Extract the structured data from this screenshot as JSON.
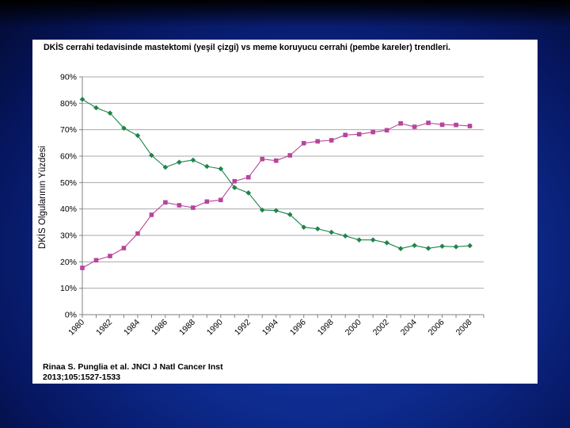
{
  "slide": {
    "title": "DKİS cerrahi tedavisinde mastektomi (yeşil çizgi) vs meme koruyucu cerrahi (pembe kareler) trendleri.",
    "citation_line1": "Rinaa S. Punglia et al. JNCI J Natl Cancer Inst",
    "citation_line2": "2013;105:1527-1533"
  },
  "chart_data": {
    "type": "line",
    "title": "",
    "xlabel": "",
    "ylabel": "DKİS Olgularının Yüzdesi",
    "xlim": [
      1980,
      2009
    ],
    "ylim": [
      0,
      90
    ],
    "x_ticks": [
      1980,
      1982,
      1984,
      1986,
      1988,
      1990,
      1992,
      1994,
      1996,
      1998,
      2000,
      2002,
      2004,
      2006,
      2008
    ],
    "y_ticks": [
      0,
      10,
      20,
      30,
      40,
      50,
      60,
      70,
      80,
      90
    ],
    "y_tick_labels": [
      "0%",
      "10%",
      "20%",
      "30%",
      "40%",
      "50%",
      "60%",
      "70%",
      "80%",
      "90%"
    ],
    "grid": "horizontal",
    "legend": "none",
    "x": [
      1980,
      1981,
      1982,
      1983,
      1984,
      1985,
      1986,
      1987,
      1988,
      1989,
      1990,
      1991,
      1992,
      1993,
      1994,
      1995,
      1996,
      1997,
      1998,
      1999,
      2000,
      2001,
      2002,
      2003,
      2004,
      2005,
      2006,
      2007,
      2008
    ],
    "series": [
      {
        "color": "#1e8449",
        "marker": "diamond",
        "values": [
          81.5,
          78.3,
          76.3,
          70.6,
          67.8,
          60.3,
          55.8,
          57.7,
          58.5,
          56.1,
          55.2,
          48.1,
          46.1,
          39.6,
          39.4,
          37.9,
          33.1,
          32.5,
          31.2,
          29.8,
          28.3,
          28.3,
          27.2,
          25.0,
          26.2,
          25.1,
          25.9,
          25.7,
          26.1
        ]
      },
      {
        "color": "#b6459d",
        "marker": "square",
        "values": [
          17.7,
          20.6,
          22.2,
          25.2,
          30.7,
          37.8,
          42.5,
          41.4,
          40.5,
          42.8,
          43.4,
          50.5,
          52.0,
          58.9,
          58.3,
          60.3,
          64.9,
          65.6,
          66.0,
          68.0,
          68.3,
          69.1,
          69.8,
          72.4,
          71.1,
          72.6,
          71.9,
          71.8,
          71.4
        ]
      }
    ]
  }
}
